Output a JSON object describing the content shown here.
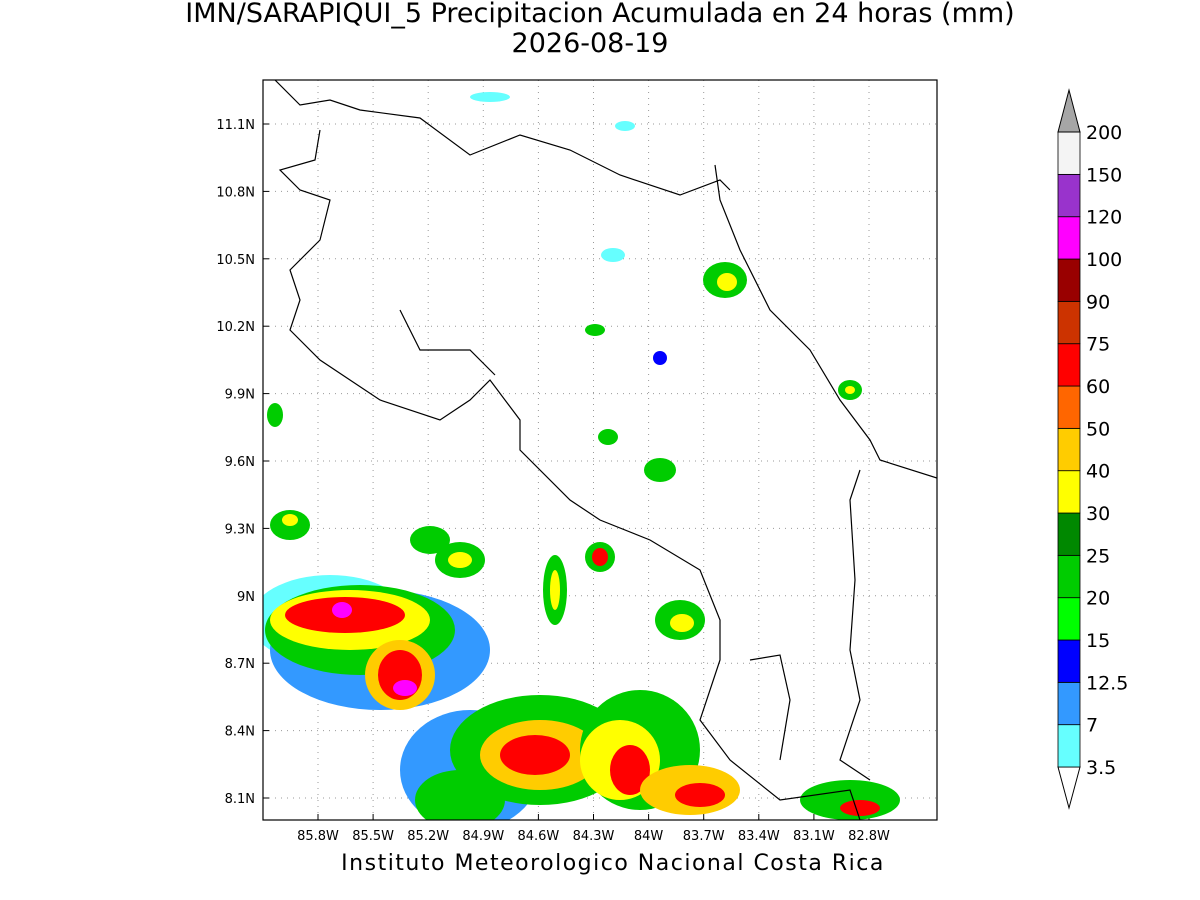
{
  "title": "IMN/SARAPIQUI_5 Precipitacion Acumulada en 24 horas (mm)",
  "date": "2026-08-19",
  "map": {
    "lat_labels": [
      "11.1N",
      "10.8N",
      "10.5N",
      "10.2N",
      "9.9N",
      "9.6N",
      "9.3N",
      "9N",
      "8.7N",
      "8.4N",
      "8.1N"
    ],
    "lon_labels": [
      "85.8W",
      "85.5W",
      "85.2W",
      "84.9W",
      "84.6W",
      "84.3W",
      "84W",
      "83.7W",
      "83.4W",
      "83.1W",
      "82.8W"
    ]
  },
  "colorbar": {
    "levels": [
      "3.5",
      "7",
      "12.5",
      "15",
      "20",
      "25",
      "30",
      "40",
      "50",
      "60",
      "75",
      "90",
      "100",
      "120",
      "150",
      "200"
    ],
    "colors": [
      "#66ffff",
      "#3399ff",
      "#0000ff",
      "#00ff00",
      "#00cc00",
      "#008800",
      "#ffff00",
      "#ffcc00",
      "#ff6600",
      "#ff0000",
      "#cc3300",
      "#990000",
      "#ff00ff",
      "#9933cc",
      "#f4f4f4"
    ],
    "over_color": "#a6a6a6",
    "under_color": "#ffffff"
  },
  "footer": "Instituto Meteorologico Nacional Costa Rica"
}
